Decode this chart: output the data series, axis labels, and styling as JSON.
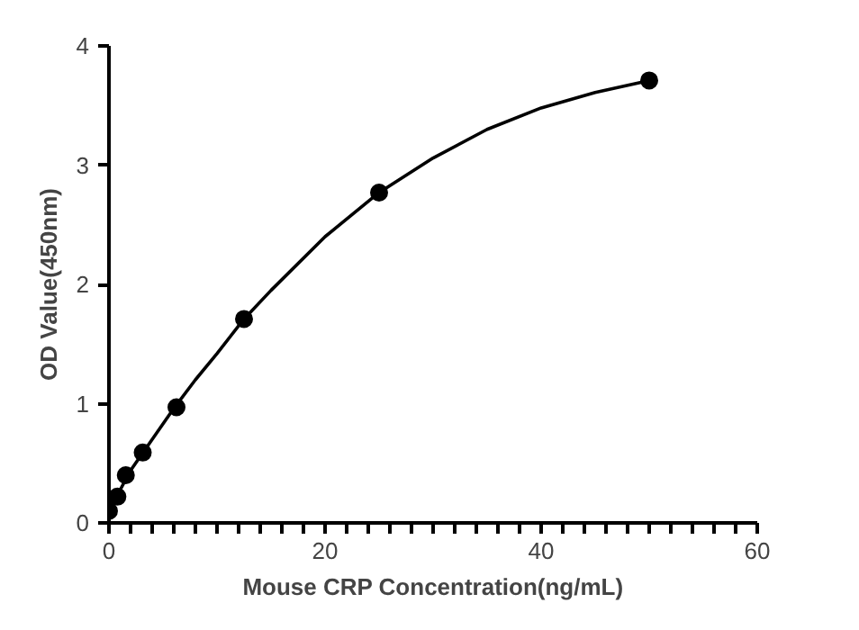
{
  "chart_data": {
    "type": "scatter",
    "xlabel": "Mouse CRP Concentration(ng/mL)",
    "ylabel": "OD Value(450nm)",
    "xlim": [
      0,
      60
    ],
    "ylim": [
      0,
      4
    ],
    "xticks": [
      0,
      {
        "value": 2,
        "label": null
      },
      {
        "value": 4,
        "label": null
      },
      {
        "value": 6,
        "label": null
      },
      {
        "value": 8,
        "label": null
      },
      {
        "value": 10,
        "label": null
      },
      {
        "value": 12,
        "label": null
      },
      {
        "value": 14,
        "label": null
      },
      {
        "value": 16,
        "label": null
      },
      {
        "value": 18,
        "label": null
      },
      20,
      {
        "value": 22,
        "label": null
      },
      {
        "value": 24,
        "label": null
      },
      {
        "value": 26,
        "label": null
      },
      {
        "value": 28,
        "label": null
      },
      {
        "value": 30,
        "label": null
      },
      {
        "value": 32,
        "label": null
      },
      {
        "value": 34,
        "label": null
      },
      {
        "value": 36,
        "label": null
      },
      {
        "value": 38,
        "label": null
      },
      40,
      {
        "value": 42,
        "label": null
      },
      {
        "value": 44,
        "label": null
      },
      {
        "value": 46,
        "label": null
      },
      {
        "value": 48,
        "label": null
      },
      {
        "value": 50,
        "label": null
      },
      {
        "value": 52,
        "label": null
      },
      {
        "value": 54,
        "label": null
      },
      {
        "value": 56,
        "label": null
      },
      {
        "value": 58,
        "label": null
      },
      60
    ],
    "yticks": [
      0,
      1,
      2,
      3,
      4
    ],
    "grid": false,
    "series": [
      {
        "marker": "circle",
        "color": "#000000",
        "x": [
          0,
          0.78,
          1.56,
          3.125,
          6.25,
          12.5,
          25,
          50
        ],
        "values": [
          0.1,
          0.22,
          0.4,
          0.59,
          0.97,
          1.71,
          2.77,
          3.71
        ]
      },
      {
        "type": "line",
        "marker": "none",
        "color": "#000000",
        "x": [
          0,
          1,
          2,
          4,
          6,
          8,
          10,
          12.5,
          15,
          20,
          25,
          30,
          35,
          40,
          45,
          50
        ],
        "values": [
          0.1,
          0.27,
          0.44,
          0.7,
          0.96,
          1.2,
          1.42,
          1.71,
          1.95,
          2.4,
          2.77,
          3.06,
          3.3,
          3.48,
          3.61,
          3.71
        ]
      }
    ]
  }
}
